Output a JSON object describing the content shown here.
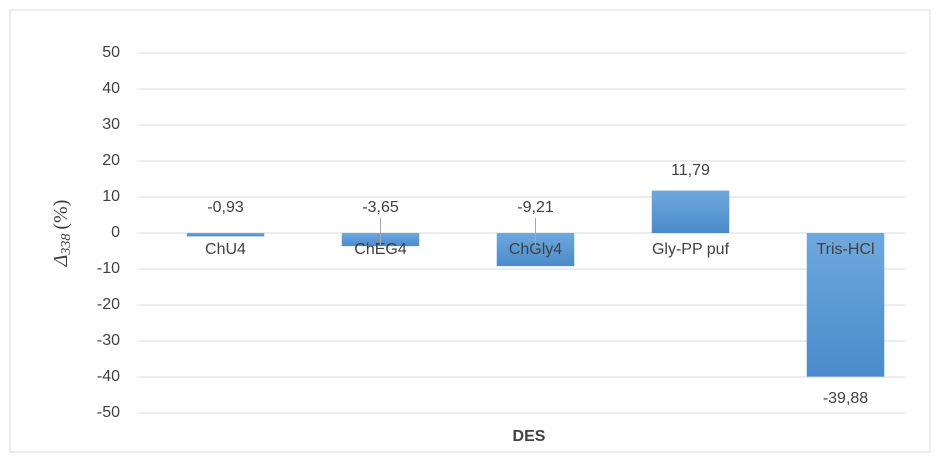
{
  "chart_data": {
    "type": "bar",
    "x_label": "DES",
    "y_label": {
      "symbol": "Δ",
      "subscript": "338",
      "unit": "(%)"
    },
    "categories": [
      "ChU4",
      "ChEG4",
      "ChGly4",
      "Gly-PP puf",
      "Tris-HCl"
    ],
    "values": [
      -0.93,
      -3.65,
      -9.21,
      11.79,
      -39.88
    ],
    "value_labels": [
      "-0,93",
      "-3,65",
      "-9,21",
      "11,79",
      "-39,88"
    ],
    "color": "#5b9bd5",
    "ylim": [
      -50,
      50
    ],
    "yticks": [
      -50,
      -40,
      -30,
      -20,
      -10,
      0,
      10,
      20,
      30,
      40,
      50
    ],
    "grid": true
  }
}
